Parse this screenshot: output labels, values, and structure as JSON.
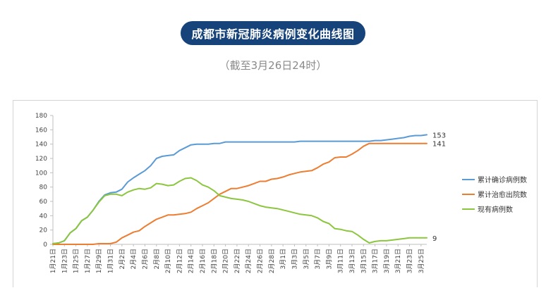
{
  "header": {
    "title": "成都市新冠肺炎病例变化曲线图",
    "subtitle": "（截至3月26日24时）"
  },
  "chart_data": {
    "type": "line",
    "title": "",
    "xlabel": "",
    "ylabel": "",
    "ylim": [
      0,
      180
    ],
    "yticks": [
      0,
      20,
      40,
      60,
      80,
      100,
      120,
      140,
      160,
      180
    ],
    "grid": false,
    "legend_position": "right",
    "x": [
      "1月21日",
      "1月22日",
      "1月23日",
      "1月24日",
      "1月25日",
      "1月26日",
      "1月27日",
      "1月28日",
      "1月29日",
      "1月30日",
      "1月31日",
      "2月1日",
      "2月2日",
      "2月3日",
      "2月4日",
      "2月5日",
      "2月6日",
      "2月7日",
      "2月8日",
      "2月9日",
      "2月10日",
      "2月11日",
      "2月12日",
      "2月13日",
      "2月14日",
      "2月15日",
      "2月16日",
      "2月17日",
      "2月18日",
      "2月19日",
      "2月20日",
      "2月21日",
      "2月22日",
      "2月23日",
      "2月24日",
      "2月25日",
      "2月26日",
      "2月27日",
      "2月28日",
      "2月29日",
      "3月1日",
      "3月2日",
      "3月3日",
      "3月4日",
      "3月5日",
      "3月6日",
      "3月7日",
      "3月8日",
      "3月9日",
      "3月10日",
      "3月11日",
      "3月12日",
      "3月13日",
      "3月14日",
      "3月15日",
      "3月16日",
      "3月17日",
      "3月18日",
      "3月19日",
      "3月20日",
      "3月21日",
      "3月22日",
      "3月23日",
      "3月24日",
      "3月25日",
      "3月26日"
    ],
    "xtick_labels": [
      "1月21日",
      "1月23日",
      "1月25日",
      "1月27日",
      "1月29日",
      "1月31日",
      "2月2日",
      "2月4日",
      "2月6日",
      "2月8日",
      "2月10日",
      "2月12日",
      "2月14日",
      "2月16日",
      "2月18日",
      "2月20日",
      "2月22日",
      "2月24日",
      "2月26日",
      "2月28日",
      "3月1日",
      "3月3日",
      "3月5日",
      "3月7日",
      "3月9日",
      "3月11日",
      "3月13日",
      "3月15日",
      "3月17日",
      "3月19日",
      "3月21日",
      "3月23日",
      "3月25日"
    ],
    "series": [
      {
        "name": "累计确诊病例数",
        "color": "#5b9bd5",
        "end_label": "153",
        "values": [
          1,
          2,
          5,
          16,
          22,
          33,
          38,
          48,
          60,
          69,
          72,
          73,
          77,
          87,
          93,
          98,
          103,
          110,
          120,
          123,
          124,
          125,
          131,
          135,
          139,
          140,
          140,
          140,
          141,
          141,
          143,
          143,
          143,
          143,
          143,
          143,
          143,
          143,
          143,
          143,
          143,
          143,
          143,
          144,
          144,
          144,
          144,
          144,
          144,
          144,
          144,
          144,
          144,
          144,
          144,
          144,
          145,
          145,
          146,
          147,
          148,
          149,
          151,
          152,
          152,
          153
        ]
      },
      {
        "name": "累计治愈出院数",
        "color": "#ed7d31",
        "end_label": "141",
        "values": [
          0,
          0,
          0,
          0,
          0,
          0,
          0,
          0,
          1,
          1,
          1,
          3,
          9,
          13,
          17,
          19,
          25,
          30,
          35,
          38,
          41,
          41,
          42,
          43,
          45,
          50,
          54,
          58,
          64,
          70,
          74,
          78,
          78,
          80,
          82,
          85,
          88,
          88,
          91,
          92,
          94,
          97,
          99,
          101,
          102,
          103,
          107,
          112,
          115,
          121,
          122,
          122,
          126,
          131,
          137,
          141,
          141,
          141,
          141,
          141,
          141,
          141,
          141,
          141,
          141,
          141
        ]
      },
      {
        "name": "现有病例数",
        "color": "#8cc63f",
        "end_label": "9",
        "values": [
          1,
          2,
          5,
          16,
          22,
          33,
          38,
          48,
          59,
          68,
          70,
          70,
          68,
          73,
          76,
          78,
          77,
          79,
          85,
          84,
          82,
          83,
          88,
          92,
          93,
          89,
          83,
          80,
          75,
          68,
          66,
          64,
          63,
          62,
          60,
          57,
          54,
          52,
          51,
          50,
          48,
          46,
          44,
          42,
          41,
          40,
          37,
          32,
          29,
          22,
          21,
          19,
          18,
          13,
          7,
          2,
          4,
          5,
          5,
          6,
          7,
          8,
          9,
          9,
          9,
          9
        ]
      }
    ]
  }
}
